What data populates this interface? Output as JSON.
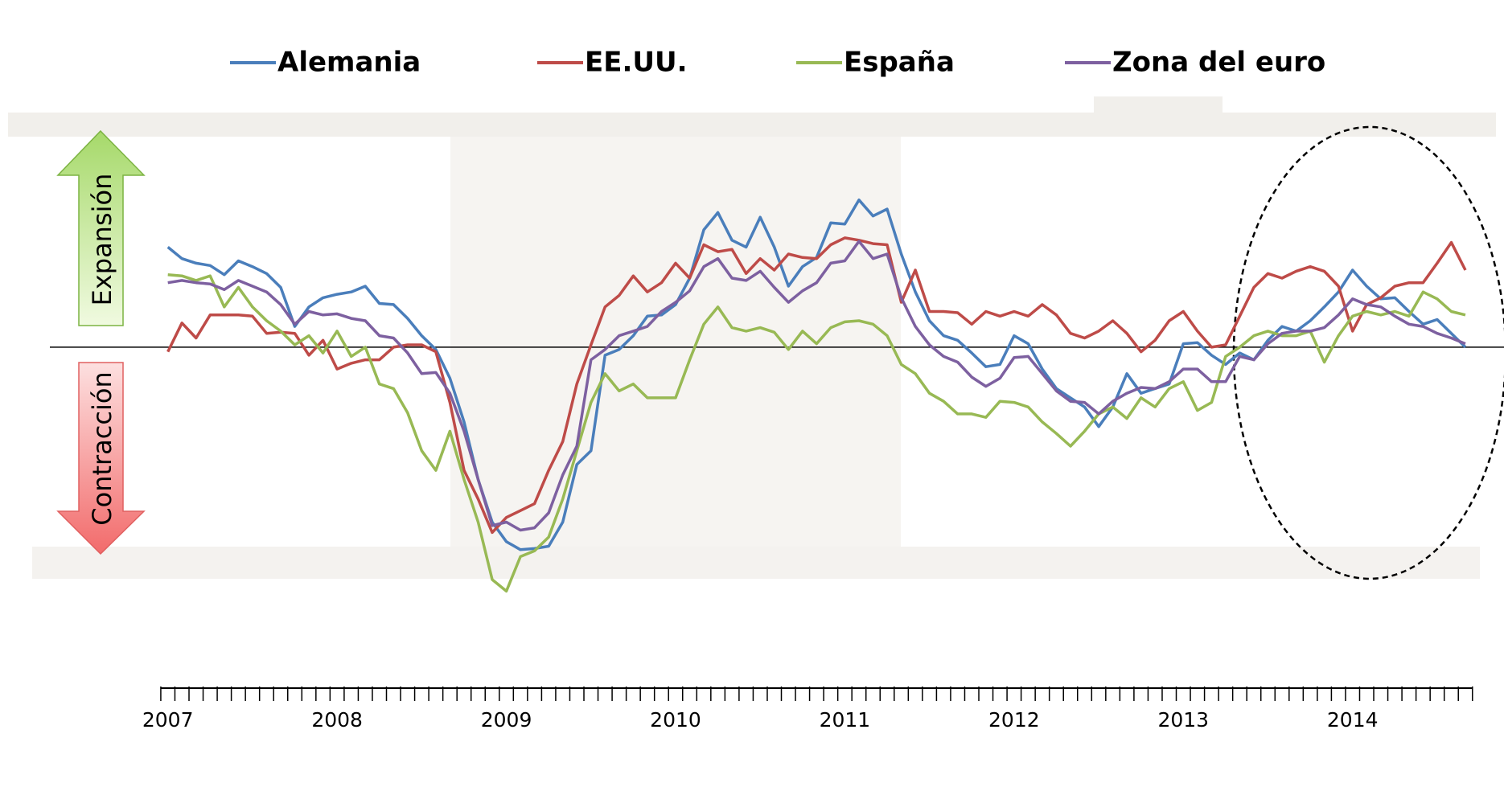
{
  "chart_data": {
    "type": "line",
    "categories": [
      "2007",
      null,
      null,
      null,
      null,
      null,
      null,
      null,
      null,
      null,
      null,
      null,
      "2008",
      null,
      null,
      null,
      null,
      null,
      null,
      null,
      null,
      null,
      null,
      null,
      "2009",
      null,
      null,
      null,
      null,
      null,
      null,
      null,
      null,
      null,
      null,
      null,
      "2010",
      null,
      null,
      null,
      null,
      null,
      null,
      null,
      null,
      null,
      null,
      null,
      "2011",
      null,
      null,
      null,
      null,
      null,
      null,
      null,
      null,
      null,
      null,
      null,
      "2012",
      null,
      null,
      null,
      null,
      null,
      null,
      null,
      null,
      null,
      null,
      null,
      "2013",
      null,
      null,
      null,
      null,
      null,
      null,
      null,
      null,
      null,
      null,
      null,
      "2014",
      null,
      null,
      null,
      null,
      null,
      null,
      null,
      null
    ],
    "series": [
      {
        "name": "Alemania",
        "color": "#4a7ebb",
        "values": [
          58.7,
          57.7,
          57.3,
          57.1,
          56.3,
          57.5,
          57.0,
          56.4,
          55.2,
          51.8,
          53.5,
          54.3,
          54.6,
          54.8,
          55.3,
          53.8,
          53.7,
          52.5,
          51.0,
          49.8,
          47.3,
          43.5,
          38.5,
          34.8,
          33.1,
          32.4,
          32.5,
          32.7,
          34.8,
          39.8,
          41.0,
          49.3,
          49.8,
          51.0,
          52.7,
          52.8,
          53.7,
          56.0,
          60.2,
          61.7,
          59.3,
          58.7,
          61.3,
          58.7,
          55.3,
          57.0,
          57.8,
          60.8,
          60.7,
          62.8,
          61.4,
          62.0,
          58.1,
          54.8,
          52.3,
          51.0,
          50.6,
          49.5,
          48.3,
          48.5,
          51.0,
          50.3,
          48.1,
          46.4,
          45.6,
          44.8,
          43.1,
          44.8,
          47.7,
          46.0,
          46.4,
          46.8,
          50.3,
          50.4,
          49.3,
          48.5,
          49.5,
          48.9,
          50.6,
          51.8,
          51.4,
          52.3,
          53.5,
          54.8,
          56.7,
          55.3,
          54.2,
          54.3,
          53.1,
          52.0,
          52.4,
          51.2,
          50.0
        ]
      },
      {
        "name": "EE.UU.",
        "color": "#be4b48",
        "values": [
          49.6,
          52.1,
          50.8,
          52.8,
          52.8,
          52.8,
          52.7,
          51.2,
          51.3,
          51.2,
          49.3,
          50.6,
          48.1,
          48.6,
          48.9,
          48.9,
          50.0,
          50.2,
          50.2,
          49.6,
          45.2,
          39.3,
          36.8,
          33.9,
          35.2,
          35.8,
          36.4,
          39.3,
          41.8,
          46.8,
          50.2,
          53.5,
          54.5,
          56.2,
          54.8,
          55.6,
          57.3,
          56.0,
          58.9,
          58.3,
          58.5,
          56.4,
          57.7,
          56.7,
          58.1,
          57.8,
          57.7,
          58.9,
          59.5,
          59.3,
          59.0,
          58.9,
          53.9,
          56.7,
          53.1,
          53.1,
          53.0,
          52.0,
          53.1,
          52.7,
          53.1,
          52.7,
          53.7,
          52.8,
          51.2,
          50.8,
          51.4,
          52.3,
          51.2,
          49.6,
          50.6,
          52.3,
          53.1,
          51.4,
          50.0,
          50.2,
          52.7,
          55.2,
          56.4,
          56.0,
          56.6,
          57.0,
          56.6,
          55.3,
          51.4,
          53.7,
          54.3,
          55.3,
          55.6,
          55.6,
          57.3,
          59.1,
          56.7
        ]
      },
      {
        "name": "España",
        "color": "#98b954",
        "values": [
          56.3,
          56.2,
          55.8,
          56.2,
          53.5,
          55.2,
          53.5,
          52.3,
          51.4,
          50.2,
          51.0,
          49.5,
          51.4,
          49.2,
          50.0,
          46.8,
          46.4,
          44.3,
          41.0,
          39.3,
          42.7,
          38.5,
          34.8,
          29.8,
          28.8,
          31.8,
          32.3,
          33.5,
          36.8,
          41.0,
          45.2,
          47.7,
          46.2,
          46.8,
          45.6,
          45.6,
          45.6,
          48.9,
          52.0,
          53.5,
          51.7,
          51.4,
          51.7,
          51.3,
          49.8,
          51.4,
          50.3,
          51.7,
          52.2,
          52.3,
          52.0,
          51.0,
          48.5,
          47.7,
          46.0,
          45.3,
          44.2,
          44.2,
          43.9,
          45.3,
          45.2,
          44.8,
          43.5,
          42.5,
          41.4,
          42.7,
          44.2,
          44.8,
          43.8,
          45.6,
          44.8,
          46.4,
          47.0,
          44.5,
          45.2,
          49.2,
          50.0,
          51.0,
          51.4,
          51.0,
          51.0,
          51.4,
          48.7,
          51.0,
          52.7,
          53.1,
          52.8,
          53.1,
          52.7,
          54.8,
          54.2,
          53.1,
          52.8
        ]
      },
      {
        "name": "Zona del euro",
        "color": "#7d60a0",
        "values": [
          55.6,
          55.8,
          55.6,
          55.5,
          55.0,
          55.8,
          55.3,
          54.8,
          53.7,
          52.0,
          53.1,
          52.8,
          52.9,
          52.5,
          52.3,
          51.0,
          50.8,
          49.5,
          47.7,
          47.8,
          46.0,
          42.7,
          38.5,
          34.5,
          34.8,
          34.1,
          34.3,
          35.6,
          38.9,
          41.4,
          48.9,
          49.8,
          51.0,
          51.4,
          51.8,
          53.1,
          53.9,
          54.9,
          57.0,
          57.7,
          56.0,
          55.8,
          56.6,
          55.2,
          53.9,
          54.9,
          55.6,
          57.3,
          57.5,
          59.2,
          57.7,
          58.1,
          54.3,
          51.8,
          50.2,
          49.2,
          48.7,
          47.4,
          46.6,
          47.3,
          49.1,
          49.2,
          47.7,
          46.2,
          45.3,
          45.2,
          44.2,
          45.3,
          46.0,
          46.5,
          46.4,
          47.0,
          48.1,
          48.1,
          47.0,
          47.0,
          49.2,
          48.9,
          50.3,
          51.2,
          51.4,
          51.4,
          51.7,
          52.8,
          54.2,
          53.7,
          53.5,
          52.7,
          52.0,
          51.8,
          51.2,
          50.8,
          50.3
        ]
      }
    ],
    "ylim": [
      21,
      72
    ],
    "reference_line": 50,
    "annotations": [
      "Expansión",
      "Contracción"
    ]
  }
}
